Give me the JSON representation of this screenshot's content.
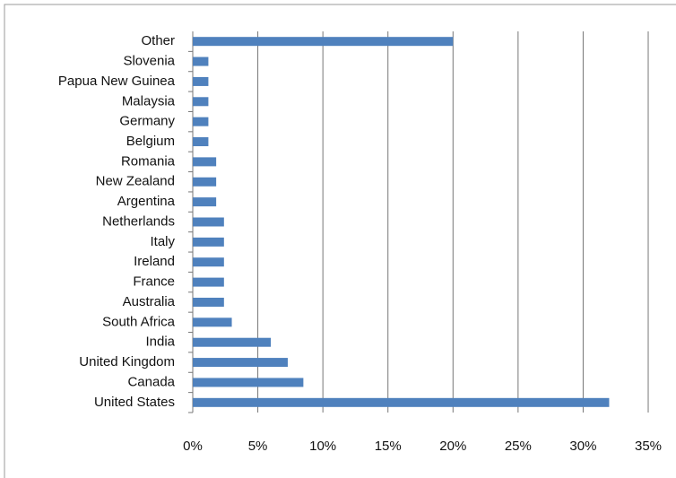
{
  "chart_data": {
    "type": "bar",
    "orientation": "horizontal",
    "categories": [
      "United States",
      "Canada",
      "United Kingdom",
      "India",
      "South Africa",
      "Australia",
      "France",
      "Ireland",
      "Italy",
      "Netherlands",
      "Argentina",
      "New Zealand",
      "Romania",
      "Belgium",
      "Germany",
      "Malaysia",
      "Papua New Guinea",
      "Slovenia",
      "Other"
    ],
    "values": [
      32,
      8.5,
      7.3,
      6,
      3,
      2.4,
      2.4,
      2.4,
      2.4,
      2.4,
      1.8,
      1.8,
      1.8,
      1.2,
      1.2,
      1.2,
      1.2,
      1.2,
      20
    ],
    "color": "#4f81bd",
    "xlim": [
      0,
      35
    ],
    "xticks": [
      {
        "value": 0,
        "label": "0%"
      },
      {
        "value": 5,
        "label": "5%"
      },
      {
        "value": 10,
        "label": "10%"
      },
      {
        "value": 15,
        "label": "15%"
      },
      {
        "value": 20,
        "label": "20%"
      },
      {
        "value": 25,
        "label": "25%"
      },
      {
        "value": 30,
        "label": "30%"
      },
      {
        "value": 35,
        "label": "35%"
      }
    ],
    "grid": true
  }
}
